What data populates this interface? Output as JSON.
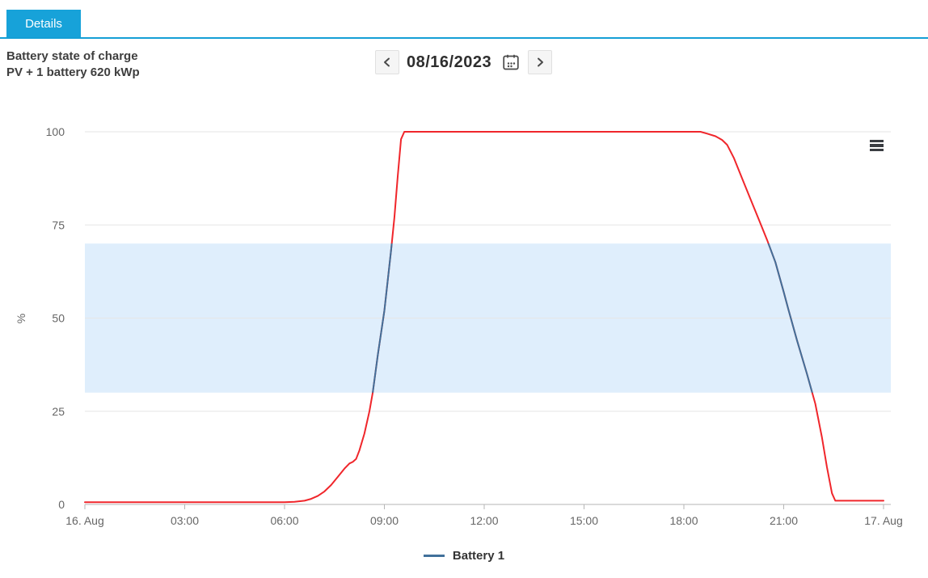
{
  "tabs": {
    "details_label": "Details"
  },
  "header": {
    "title_line1": "Battery state of charge",
    "title_line2": "PV + 1 battery 620 kWp"
  },
  "date_nav": {
    "value": "08/16/2023",
    "prev_icon": "chevron-left-icon",
    "next_icon": "chevron-right-icon",
    "calendar_icon": "calendar-icon"
  },
  "icons": {
    "chart_menu": "hamburger-menu-icon"
  },
  "colors": {
    "tab_background": "#17a2d9",
    "tab_underline": "#149fd6",
    "series_red": "#f0262b",
    "series_blue": "#41709a",
    "plot_band": "#dfeefc",
    "grid": "#e6e6e6",
    "axis": "#b6b6b6",
    "axis_text": "#666666"
  },
  "chart_data": {
    "type": "line",
    "title": "Battery state of charge",
    "subtitle": "PV + 1 battery 620 kWp",
    "ylabel": "%",
    "ylim": [
      0,
      100
    ],
    "yticks": [
      0,
      25,
      50,
      75,
      100
    ],
    "xlim_hours": [
      0,
      24
    ],
    "xticks": [
      {
        "hour": 0,
        "label": "16. Aug"
      },
      {
        "hour": 3,
        "label": "03:00"
      },
      {
        "hour": 6,
        "label": "06:00"
      },
      {
        "hour": 9,
        "label": "09:00"
      },
      {
        "hour": 12,
        "label": "12:00"
      },
      {
        "hour": 15,
        "label": "15:00"
      },
      {
        "hour": 18,
        "label": "18:00"
      },
      {
        "hour": 21,
        "label": "21:00"
      },
      {
        "hour": 24,
        "label": "17. Aug"
      }
    ],
    "plot_band": {
      "from": 30,
      "to": 70,
      "color": "#dfeefc"
    },
    "grid": true,
    "legend_position": "bottom",
    "series": [
      {
        "name": "Battery 1",
        "base_color": "#41709a",
        "out_of_band_color": "#f0262b",
        "zone_note": "line is blue inside 30-70% band, red outside",
        "points": [
          [
            0,
            0.6
          ],
          [
            0.5,
            0.6
          ],
          [
            1,
            0.6
          ],
          [
            1.5,
            0.6
          ],
          [
            2,
            0.6
          ],
          [
            2.5,
            0.6
          ],
          [
            3,
            0.6
          ],
          [
            3.5,
            0.6
          ],
          [
            4,
            0.6
          ],
          [
            4.5,
            0.6
          ],
          [
            5,
            0.6
          ],
          [
            5.5,
            0.6
          ],
          [
            6,
            0.6
          ],
          [
            6.3,
            0.7
          ],
          [
            6.6,
            1.0
          ],
          [
            6.8,
            1.5
          ],
          [
            7.0,
            2.3
          ],
          [
            7.2,
            3.5
          ],
          [
            7.4,
            5.2
          ],
          [
            7.6,
            7.4
          ],
          [
            7.8,
            9.6
          ],
          [
            7.95,
            11.0
          ],
          [
            8.05,
            11.4
          ],
          [
            8.15,
            12.2
          ],
          [
            8.25,
            14.5
          ],
          [
            8.4,
            19
          ],
          [
            8.55,
            25
          ],
          [
            8.65,
            30
          ],
          [
            8.8,
            40
          ],
          [
            9.0,
            52
          ],
          [
            9.1,
            60
          ],
          [
            9.2,
            68
          ],
          [
            9.3,
            77
          ],
          [
            9.4,
            88
          ],
          [
            9.5,
            98
          ],
          [
            9.6,
            100
          ],
          [
            10,
            100
          ],
          [
            11,
            100
          ],
          [
            12,
            100
          ],
          [
            13,
            100
          ],
          [
            14,
            100
          ],
          [
            15,
            100
          ],
          [
            16,
            100
          ],
          [
            17,
            100
          ],
          [
            18,
            100
          ],
          [
            18.5,
            100
          ],
          [
            18.7,
            99.5
          ],
          [
            18.95,
            98.8
          ],
          [
            19.15,
            97.8
          ],
          [
            19.3,
            96.5
          ],
          [
            19.5,
            93
          ],
          [
            19.75,
            87.5
          ],
          [
            20,
            82
          ],
          [
            20.25,
            76.5
          ],
          [
            20.5,
            71
          ],
          [
            20.75,
            65
          ],
          [
            21,
            57
          ],
          [
            21.15,
            52
          ],
          [
            21.4,
            44
          ],
          [
            21.7,
            35
          ],
          [
            21.95,
            27
          ],
          [
            22.15,
            18
          ],
          [
            22.3,
            10
          ],
          [
            22.45,
            3
          ],
          [
            22.55,
            1
          ],
          [
            23,
            1
          ],
          [
            23.5,
            1
          ],
          [
            24,
            1
          ]
        ]
      }
    ]
  },
  "legend": {
    "items": [
      {
        "label": "Battery 1"
      }
    ]
  }
}
